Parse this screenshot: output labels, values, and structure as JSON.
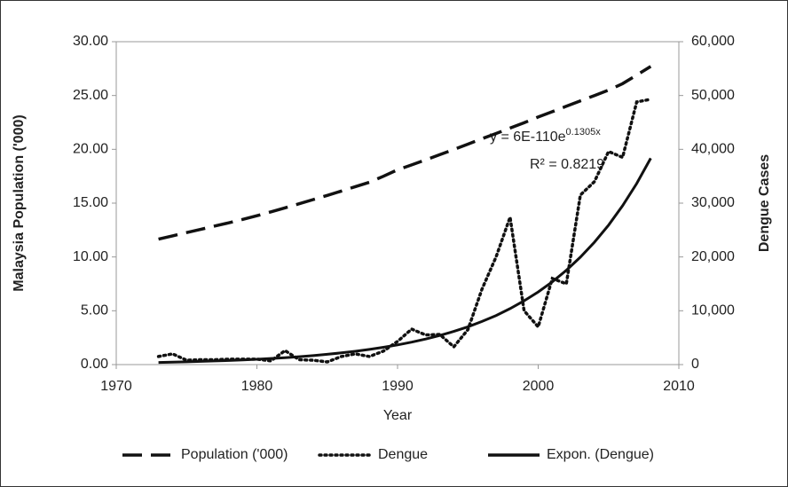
{
  "chart_data": {
    "type": "line",
    "xlabel": "Year",
    "ylabel": "Malaysia Population ('000)",
    "y2label": "Dengue Cases",
    "x": [
      1973,
      1974,
      1975,
      1976,
      1977,
      1978,
      1979,
      1980,
      1981,
      1982,
      1983,
      1984,
      1985,
      1986,
      1987,
      1988,
      1989,
      1990,
      1991,
      1992,
      1993,
      1994,
      1995,
      1996,
      1997,
      1998,
      1999,
      2000,
      2001,
      2002,
      2003,
      2004,
      2005,
      2006,
      2007,
      2008
    ],
    "xlim": [
      1970,
      2010
    ],
    "xticks": [
      1970,
      1980,
      1990,
      2000,
      2010
    ],
    "ylim": [
      0,
      30
    ],
    "yticks": [
      {
        "value": 0,
        "label": "0.00"
      },
      {
        "value": 5,
        "label": "5.00"
      },
      {
        "value": 10,
        "label": "10.00"
      },
      {
        "value": 15,
        "label": "15.00"
      },
      {
        "value": 20,
        "label": "20.00"
      },
      {
        "value": 25,
        "label": "25.00"
      },
      {
        "value": 30,
        "label": "30.00"
      }
    ],
    "y2lim": [
      0,
      60000
    ],
    "y2ticks": [
      0,
      {
        "value": 10000,
        "label": "10,000"
      },
      {
        "value": 20000,
        "label": "20,000"
      },
      {
        "value": 30000,
        "label": "30,000"
      },
      {
        "value": 40000,
        "label": "40,000"
      },
      {
        "value": 50000,
        "label": "50,000"
      },
      {
        "value": 60000,
        "label": "60,000"
      }
    ],
    "grid": false,
    "legend": "bottom",
    "series": [
      {
        "name": "Population ('000)",
        "color": "#111111",
        "style": "dashed",
        "values": [
          11.65,
          11.96,
          12.26,
          12.56,
          12.87,
          13.17,
          13.49,
          13.83,
          14.19,
          14.56,
          14.94,
          15.33,
          15.72,
          16.12,
          16.53,
          16.94,
          17.5,
          18.1,
          18.55,
          19.02,
          19.5,
          19.99,
          20.48,
          20.98,
          21.47,
          21.97,
          22.47,
          23.0,
          23.5,
          24.0,
          24.5,
          25.0,
          25.5,
          26.1,
          26.9,
          27.7
        ]
      },
      {
        "name": "Dengue",
        "color": "#111111",
        "style": "dotted",
        "axis": "y2",
        "values": [
          1500,
          2000,
          800,
          900,
          900,
          1000,
          1000,
          1000,
          700,
          2600,
          900,
          800,
          500,
          1500,
          2000,
          1500,
          2500,
          4300,
          6600,
          5500,
          5600,
          3300,
          6500,
          14000,
          20000,
          27400,
          10000,
          7000,
          16000,
          15000,
          31500,
          34000,
          39600,
          38500,
          48800,
          49300
        ]
      },
      {
        "name": "Expon. (Dengue)",
        "color": "#111111",
        "style": "solid",
        "axis": "y2",
        "values": [
          398,
          453,
          517,
          589,
          671,
          764,
          871,
          992,
          1131,
          1288,
          1468,
          1672,
          1905,
          2171,
          2474,
          2819,
          3212,
          3659,
          4169,
          4751,
          5413,
          6168,
          7027,
          8007,
          9123,
          10395,
          11844,
          13495,
          15376,
          17519,
          19961,
          22744,
          25914,
          29527,
          33643,
          38333
        ]
      }
    ],
    "annotation": {
      "equation": "y = 6E-110e",
      "exponent": "0.1305x",
      "r_squared": "R² = 0.8219"
    }
  }
}
